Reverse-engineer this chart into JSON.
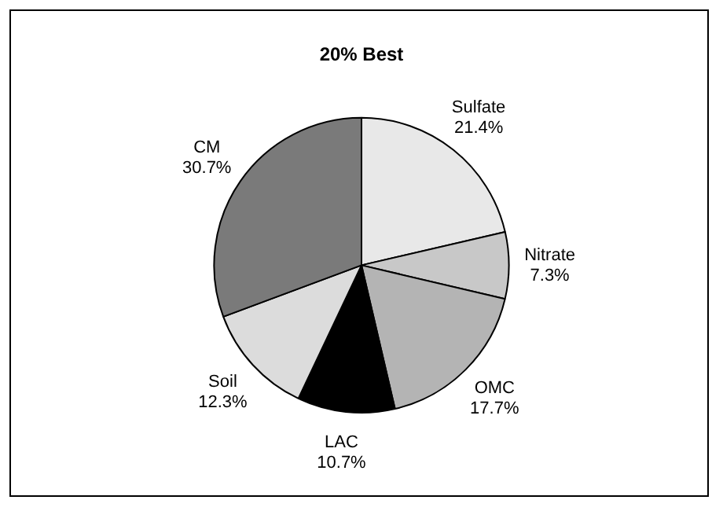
{
  "chart_data": {
    "type": "pie",
    "title": "20% Best",
    "categories": [
      "Sulfate",
      "Nitrate",
      "OMC",
      "LAC",
      "Soil",
      "CM"
    ],
    "values": [
      21.4,
      7.3,
      17.7,
      10.7,
      12.3,
      30.7
    ],
    "value_labels": [
      "21.4%",
      "7.3%",
      "17.7%",
      "10.7%",
      "12.3%",
      "30.7%"
    ],
    "colors": [
      "#e8e8e8",
      "#c8c8c8",
      "#b4b4b4",
      "#000000",
      "#dcdcdc",
      "#7a7a7a"
    ],
    "legend": false
  }
}
